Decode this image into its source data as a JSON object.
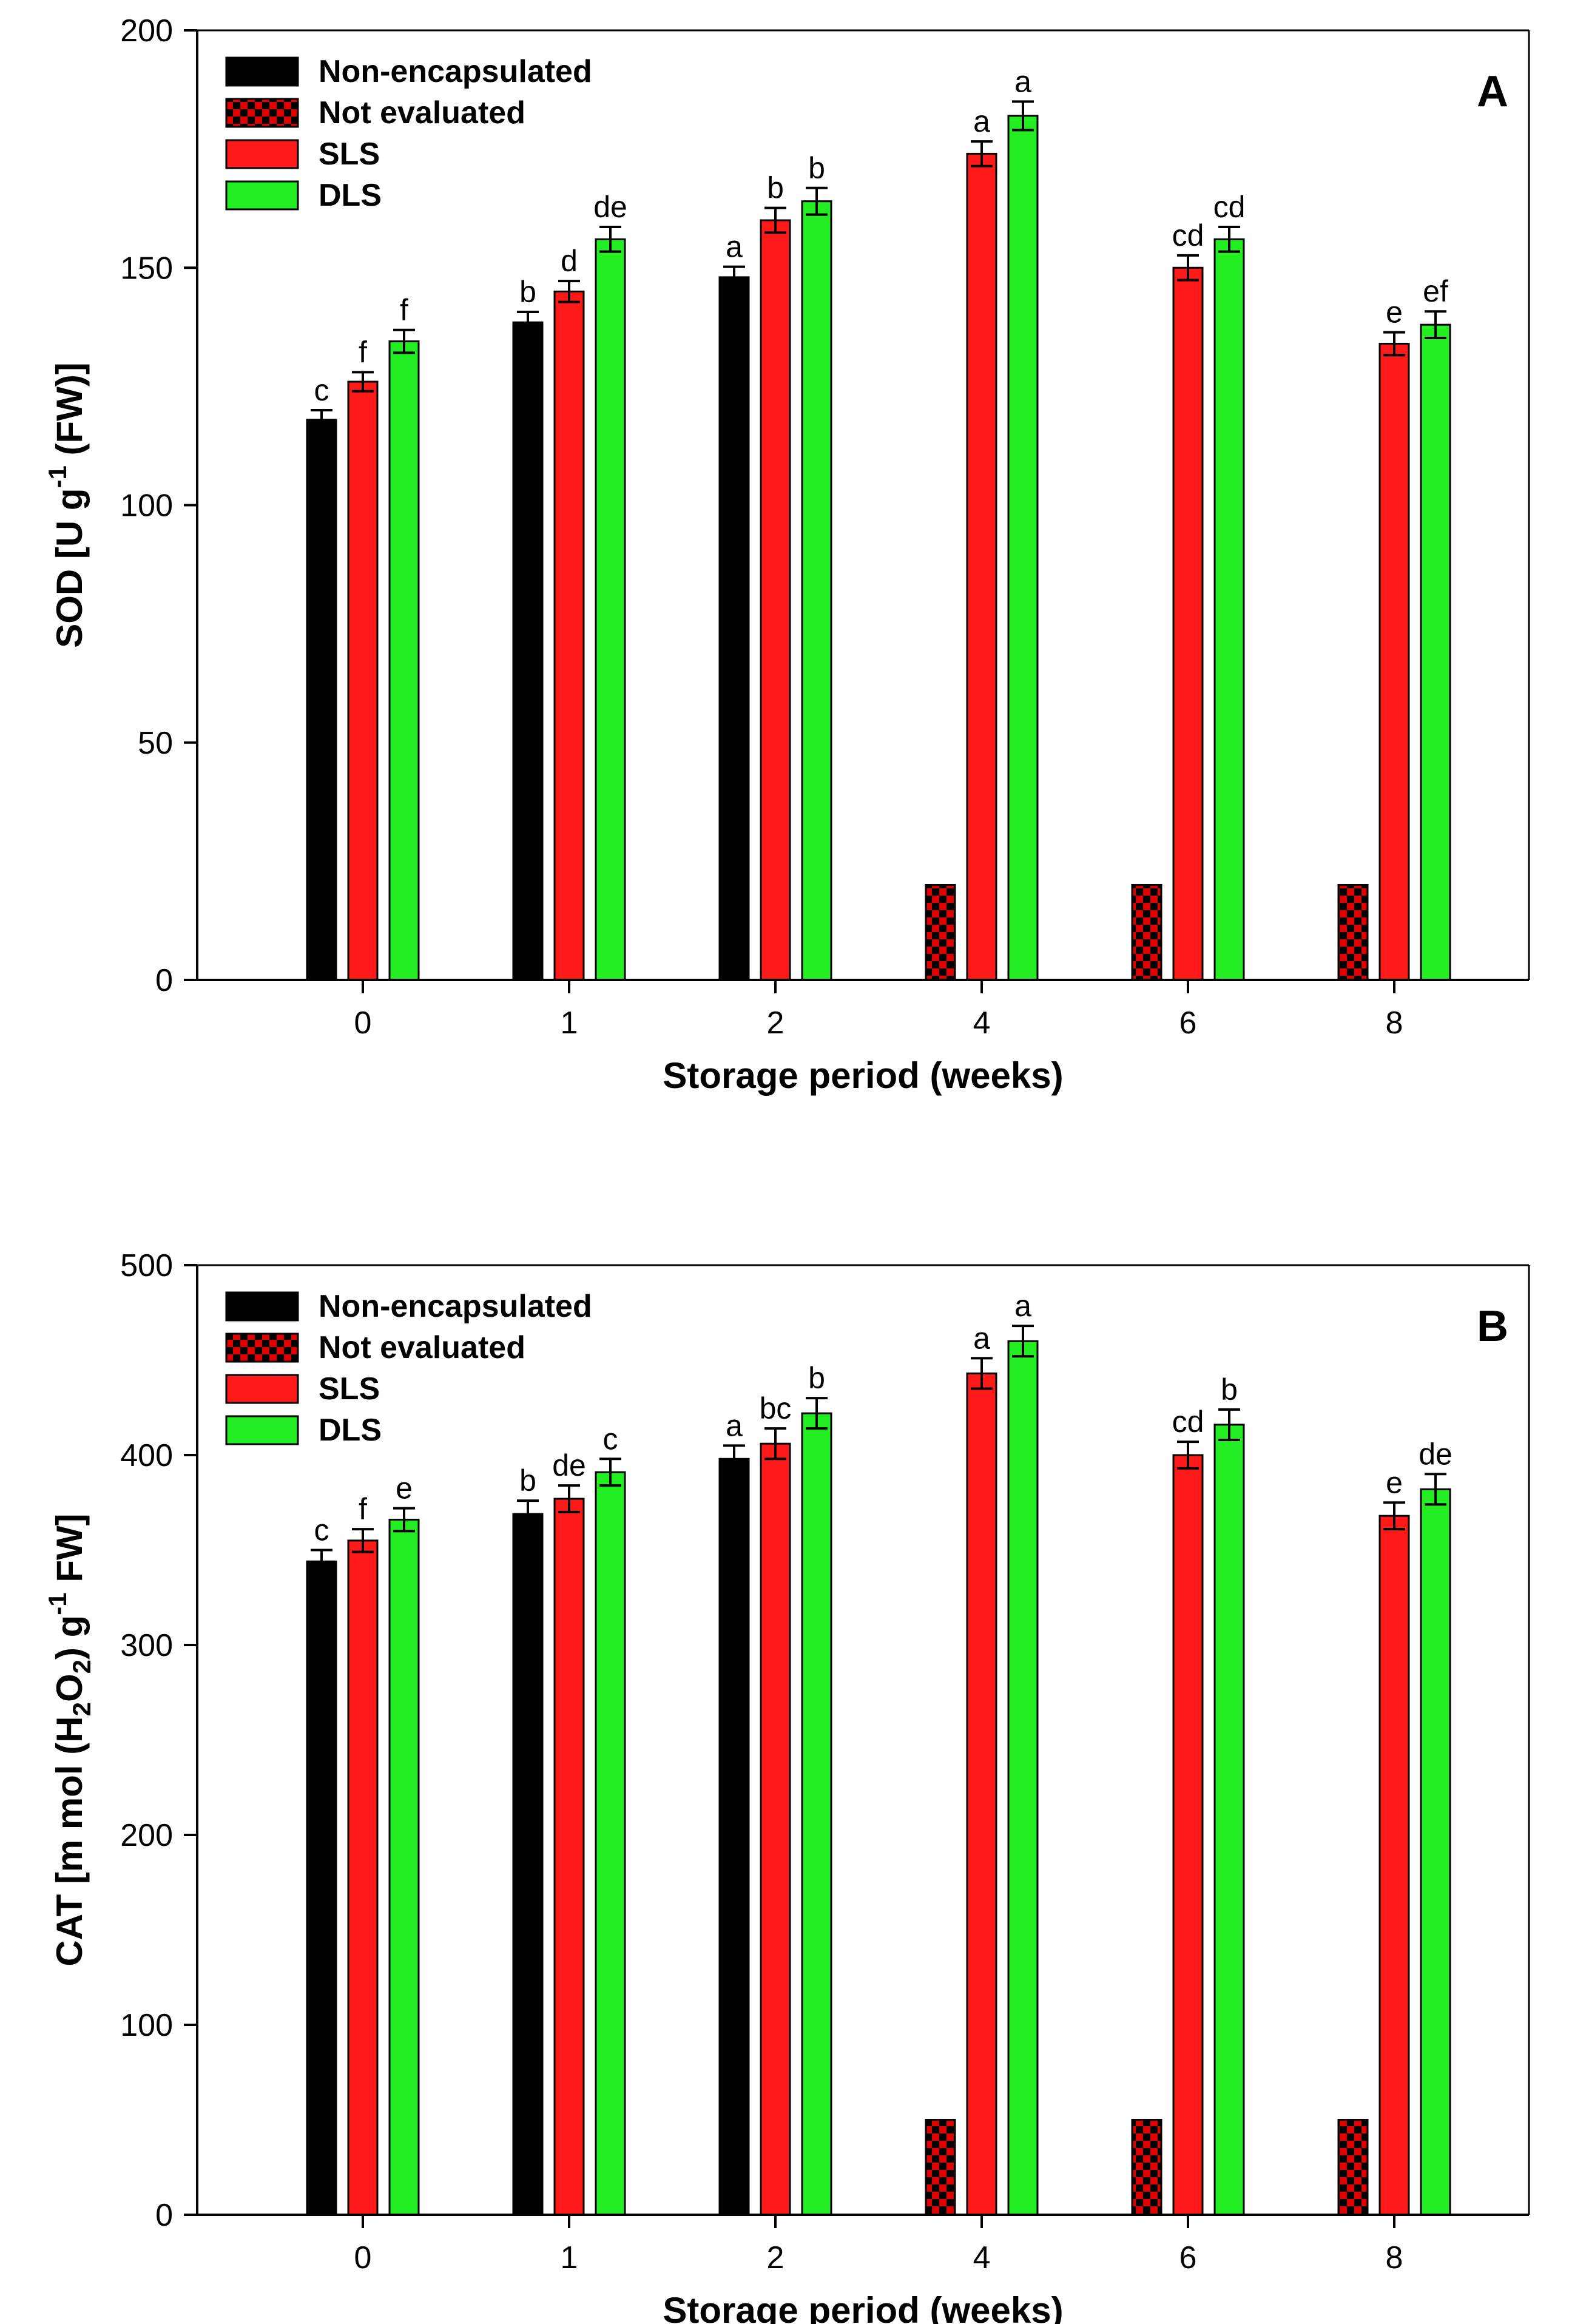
{
  "chart_data": [
    {
      "type": "bar",
      "panel_label": "A",
      "categories": [
        "0",
        "1",
        "2",
        "4",
        "6",
        "8"
      ],
      "xlabel": "Storage period (weeks)",
      "ylabel": {
        "main": "SOD [U g",
        "sup": "-1",
        "post": " (FW)]"
      },
      "ylim": [
        0,
        200
      ],
      "yticks": [
        "0",
        "50",
        "100",
        "150",
        "200"
      ],
      "series": [
        {
          "name": "Non-encapsulated",
          "color": "#000000",
          "pattern": "solid",
          "values": [
            118,
            138.5,
            148,
            null,
            null,
            null
          ],
          "errors": [
            2,
            2.2,
            2.2,
            null,
            null,
            null
          ],
          "letters": [
            "c",
            "b",
            "a",
            null,
            null,
            null
          ]
        },
        {
          "name": "Not evaluated",
          "color": "#e00000",
          "pattern": "checker",
          "values": [
            null,
            null,
            null,
            20,
            20,
            20
          ],
          "errors": [
            null,
            null,
            null,
            null,
            null,
            null
          ],
          "letters": [
            null,
            null,
            null,
            null,
            null,
            null
          ]
        },
        {
          "name": "SLS",
          "color": "#ff1a1a",
          "pattern": "solid",
          "values": [
            126,
            145,
            160,
            174,
            150,
            134
          ],
          "errors": [
            2,
            2.2,
            2.6,
            2.6,
            2.6,
            2.4
          ],
          "letters": [
            "f",
            "d",
            "b",
            "a",
            "cd",
            "e"
          ]
        },
        {
          "name": "DLS",
          "color": "#22ee22",
          "pattern": "solid",
          "values": [
            134.5,
            156,
            164,
            182,
            156,
            138
          ],
          "errors": [
            2.4,
            2.6,
            2.8,
            3,
            2.6,
            2.8
          ],
          "letters": [
            "f",
            "de",
            "b",
            "a",
            "cd",
            "ef"
          ]
        }
      ]
    },
    {
      "type": "bar",
      "panel_label": "B",
      "categories": [
        "0",
        "1",
        "2",
        "4",
        "6",
        "8"
      ],
      "xlabel": "Storage period (weeks)",
      "ylabel": {
        "main": "CAT [m mol (H",
        "sub1": "2",
        "mid": "O",
        "sub2": "2",
        "mid2": ") g",
        "sup": "-1",
        "post": " FW]"
      },
      "ylim": [
        0,
        500
      ],
      "yticks": [
        "0",
        "100",
        "200",
        "300",
        "400",
        "500"
      ],
      "series": [
        {
          "name": "Non-encapsulated",
          "color": "#000000",
          "pattern": "solid",
          "values": [
            344,
            369,
            398,
            null,
            null,
            null
          ],
          "errors": [
            6,
            7,
            7,
            null,
            null,
            null
          ],
          "letters": [
            "c",
            "b",
            "a",
            null,
            null,
            null
          ]
        },
        {
          "name": "Not evaluated",
          "color": "#e00000",
          "pattern": "checker",
          "values": [
            null,
            null,
            null,
            50,
            50,
            50
          ],
          "errors": [
            null,
            null,
            null,
            null,
            null,
            null
          ],
          "letters": [
            null,
            null,
            null,
            null,
            null,
            null
          ]
        },
        {
          "name": "SLS",
          "color": "#ff1a1a",
          "pattern": "solid",
          "values": [
            355,
            377,
            406,
            443,
            400,
            368
          ],
          "errors": [
            6,
            7,
            8,
            8,
            7,
            7
          ],
          "letters": [
            "f",
            "de",
            "bc",
            "a",
            "cd",
            "e"
          ]
        },
        {
          "name": "DLS",
          "color": "#22ee22",
          "pattern": "solid",
          "values": [
            366,
            391,
            422,
            460,
            416,
            382
          ],
          "errors": [
            6,
            7,
            8,
            8,
            8,
            8
          ],
          "letters": [
            "e",
            "c",
            "b",
            "a",
            "b",
            "de"
          ]
        }
      ]
    }
  ]
}
